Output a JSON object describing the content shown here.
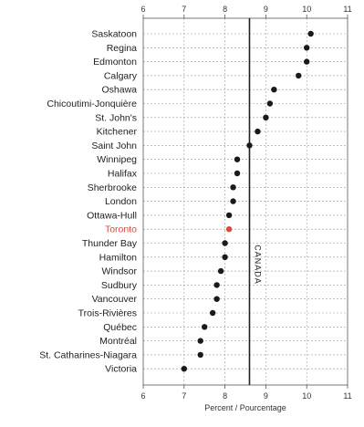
{
  "chart_data": {
    "type": "scatter",
    "orientation": "horizontal-dot",
    "xlabel": "Percent / Pourcentage",
    "xlim": [
      6,
      11
    ],
    "xticks": [
      6,
      7,
      8,
      9,
      10,
      11
    ],
    "grid": true,
    "reference": {
      "label": "CANADA",
      "value": 8.6,
      "color": "#222222"
    },
    "point_color": "#1a1a1a",
    "highlight_color": "#d94a3a",
    "categories": [
      "Saskatoon",
      "Regina",
      "Edmonton",
      "Calgary",
      "Oshawa",
      "Chicoutimi-Jonquière",
      "St. John's",
      "Kitchener",
      "Saint John",
      "Winnipeg",
      "Halifax",
      "Sherbrooke",
      "London",
      "Ottawa-Hull",
      "Toronto",
      "Thunder Bay",
      "Hamilton",
      "Windsor",
      "Sudbury",
      "Vancouver",
      "Trois-Rivières",
      "Québec",
      "Montréal",
      "St. Catharines-Niagara",
      "Victoria"
    ],
    "values": [
      10.1,
      10.0,
      10.0,
      9.8,
      9.2,
      9.1,
      9.0,
      8.8,
      8.6,
      8.3,
      8.3,
      8.2,
      8.2,
      8.1,
      8.1,
      8.0,
      8.0,
      7.9,
      7.8,
      7.8,
      7.7,
      7.5,
      7.4,
      7.4,
      7.0
    ],
    "highlight": "Toronto"
  }
}
